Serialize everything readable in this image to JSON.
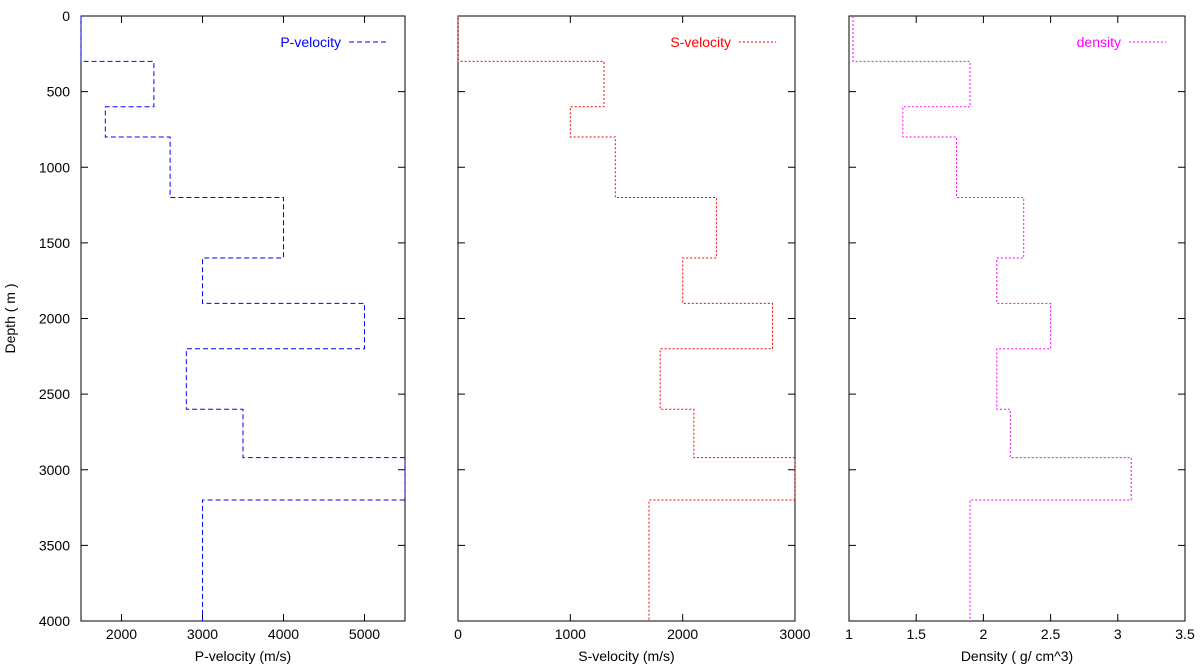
{
  "chart_data": [
    {
      "type": "line",
      "ylabel": "Depth ( m )",
      "xlabel": "P-velocity (m/s)",
      "xlim": [
        1500,
        5500
      ],
      "ylim": [
        0,
        4000
      ],
      "y_inverted": true,
      "grid": false,
      "legend_position": "top-right",
      "xticks": [
        2000,
        3000,
        4000,
        5000
      ],
      "xtick_labels": [
        "2000",
        "3000",
        "4000",
        "5000"
      ],
      "yticks": [
        0,
        500,
        1000,
        1500,
        2000,
        2500,
        3000,
        3500,
        4000
      ],
      "ytick_labels": [
        "0",
        "500",
        "1000",
        "1500",
        "2000",
        "2500",
        "3000",
        "3500",
        "4000"
      ],
      "series": [
        {
          "name": "P-velocity",
          "color": "#0000ff",
          "dash": "dashed",
          "x": [
            1500,
            1500,
            2400,
            2400,
            1800,
            1800,
            2600,
            2600,
            4000,
            4000,
            3000,
            3000,
            5000,
            5000,
            2800,
            2800,
            3500,
            3500,
            5500,
            5500,
            3000,
            3000
          ],
          "y": [
            0,
            300,
            300,
            600,
            600,
            800,
            800,
            1200,
            1200,
            1600,
            1600,
            1900,
            1900,
            2200,
            2200,
            2600,
            2600,
            2920,
            2920,
            3200,
            3200,
            4000
          ]
        }
      ]
    },
    {
      "type": "line",
      "xlabel": "S-velocity (m/s)",
      "xlim": [
        0,
        3000
      ],
      "ylim": [
        0,
        4000
      ],
      "y_inverted": true,
      "grid": false,
      "legend_position": "top-right",
      "xticks": [
        0,
        1000,
        2000,
        3000
      ],
      "xtick_labels": [
        "0",
        "1000",
        "2000",
        "3000"
      ],
      "series": [
        {
          "name": "S-velocity",
          "color": "#ff0000",
          "dash": "dotted",
          "x": [
            0,
            0,
            1300,
            1300,
            1000,
            1000,
            1400,
            1400,
            2300,
            2300,
            2000,
            2000,
            2800,
            2800,
            1800,
            1800,
            2100,
            2100,
            3000,
            3000,
            1700,
            1700
          ],
          "y": [
            0,
            300,
            300,
            600,
            600,
            800,
            800,
            1200,
            1200,
            1600,
            1600,
            1900,
            1900,
            2200,
            2200,
            2600,
            2600,
            2920,
            2920,
            3200,
            3200,
            4000
          ]
        }
      ]
    },
    {
      "type": "line",
      "xlabel": "Density ( g/ cm^3)",
      "xlim": [
        1,
        3.5
      ],
      "ylim": [
        0,
        4000
      ],
      "y_inverted": true,
      "grid": false,
      "legend_position": "top-right",
      "xticks": [
        1,
        1.5,
        2,
        2.5,
        3,
        3.5
      ],
      "xtick_labels": [
        "1",
        "1.5",
        "2",
        "2.5",
        "3",
        "3.5"
      ],
      "series": [
        {
          "name": "density",
          "color": "#ff00ff",
          "dash": "dotted",
          "x": [
            1.03,
            1.03,
            1.9,
            1.9,
            1.4,
            1.4,
            1.8,
            1.8,
            2.3,
            2.3,
            2.1,
            2.1,
            2.5,
            2.5,
            2.1,
            2.1,
            2.2,
            2.2,
            3.1,
            3.1,
            1.9,
            1.9
          ],
          "y": [
            0,
            300,
            300,
            600,
            600,
            800,
            800,
            1200,
            1200,
            1600,
            1600,
            1900,
            1900,
            2200,
            2200,
            2600,
            2600,
            2920,
            2920,
            3200,
            3200,
            4000
          ]
        }
      ]
    }
  ]
}
